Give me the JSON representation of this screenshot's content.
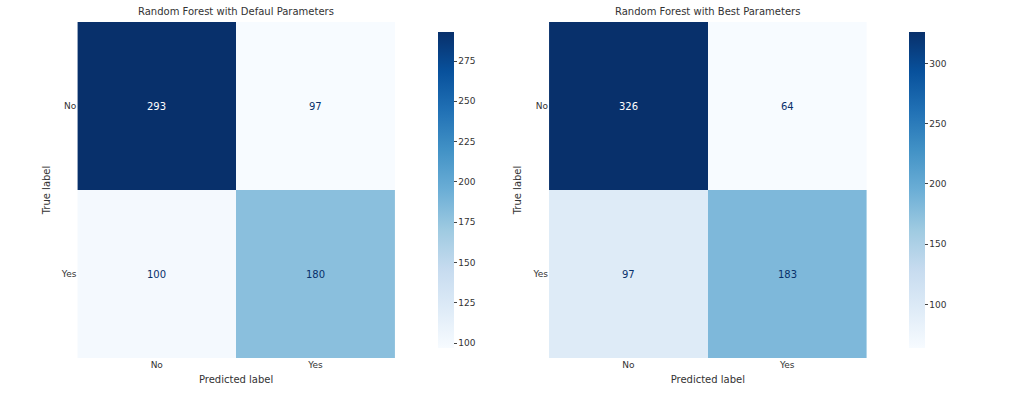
{
  "chart_data": [
    {
      "type": "heatmap",
      "title": "Random Forest with Defaul Parameters",
      "x_label": "Predicted label",
      "y_label": "True label",
      "x": [
        "No",
        "Yes"
      ],
      "y": [
        "No",
        "Yes"
      ],
      "cells": [
        [
          293,
          97
        ],
        [
          100,
          180
        ]
      ],
      "data_labels": true,
      "color": "Blues",
      "colorbar_range": [
        97,
        293
      ],
      "colorbar_ticks": [
        100,
        125,
        150,
        175,
        200,
        225,
        250,
        275
      ]
    },
    {
      "type": "heatmap",
      "title": "Random Forest with Best Parameters",
      "x_label": "Predicted label",
      "y_label": "True label",
      "x": [
        "No",
        "Yes"
      ],
      "y": [
        "No",
        "Yes"
      ],
      "cells": [
        [
          326,
          64
        ],
        [
          97,
          183
        ]
      ],
      "data_labels": true,
      "color": "Blues",
      "colorbar_range": [
        64,
        326
      ],
      "colorbar_ticks": [
        100,
        150,
        200,
        250,
        300
      ]
    }
  ]
}
